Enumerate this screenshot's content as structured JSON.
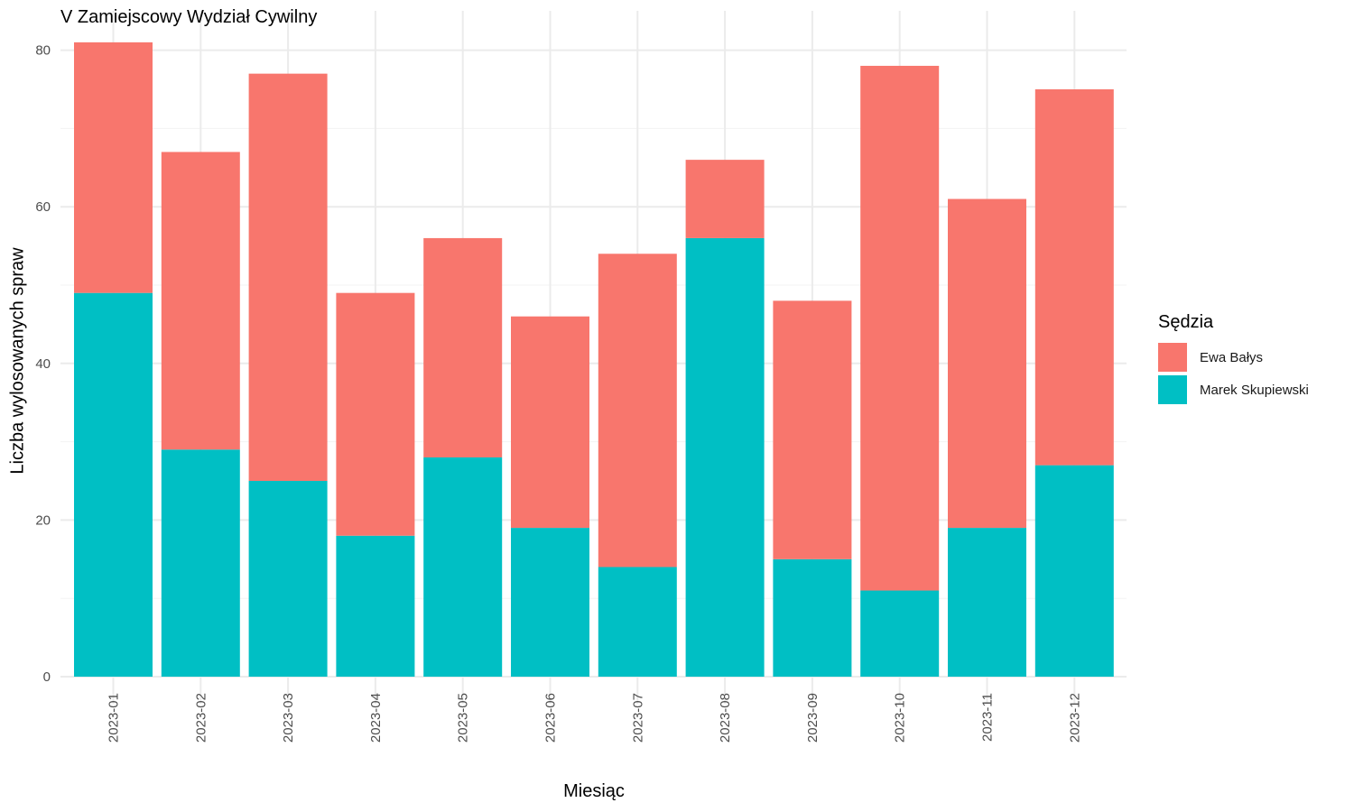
{
  "chart_data": {
    "type": "bar",
    "stacked": true,
    "title": "V Zamiejscowy Wydział Cywilny",
    "xlabel": "Miesiąc",
    "ylabel": "Liczba wylosowanych spraw",
    "ylim": [
      0,
      85
    ],
    "yticks": [
      "0",
      "20",
      "40",
      "60",
      "80"
    ],
    "grid": true,
    "legend": {
      "title": "Sędzia",
      "position": "right"
    },
    "categories": [
      "2023-01",
      "2023-02",
      "2023-03",
      "2023-04",
      "2023-05",
      "2023-06",
      "2023-07",
      "2023-08",
      "2023-09",
      "2023-10",
      "2023-11",
      "2023-12"
    ],
    "series": [
      {
        "name": "Marek Skupiewski",
        "color": "#00BFC4",
        "values": [
          49,
          29,
          25,
          18,
          28,
          19,
          14,
          56,
          15,
          11,
          19,
          27
        ]
      },
      {
        "name": "Ewa Bałys",
        "color": "#F8766D",
        "values": [
          32,
          38,
          52,
          31,
          28,
          27,
          40,
          10,
          33,
          67,
          42,
          48
        ]
      }
    ]
  }
}
